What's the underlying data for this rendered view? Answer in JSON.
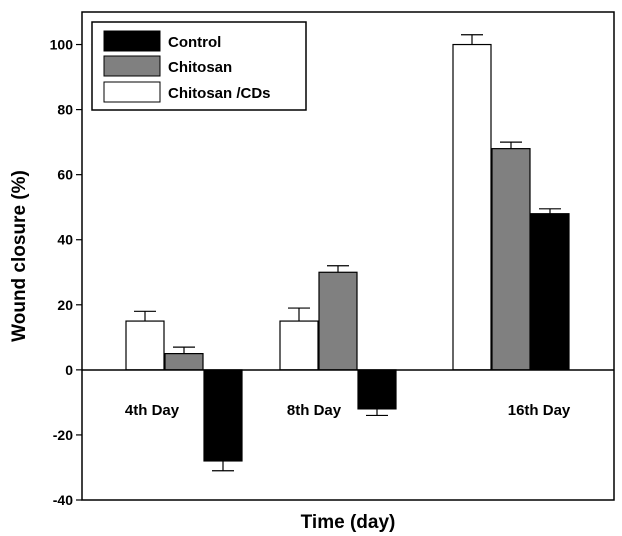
{
  "chart_data": {
    "type": "bar",
    "title": "",
    "xlabel": "Time (day)",
    "ylabel": "Wound closure (%)",
    "ylim": [
      -40,
      110
    ],
    "yticks": [
      -40,
      -20,
      0,
      20,
      40,
      60,
      80,
      100
    ],
    "categories": [
      "4th Day",
      "8th Day",
      "16th Day"
    ],
    "legend_position": "top-left",
    "grid": false,
    "series": [
      {
        "name": "Chitosan /CDs",
        "color": "#ffffff",
        "values": [
          15,
          15,
          100
        ],
        "errors": [
          3,
          4,
          3
        ]
      },
      {
        "name": "Chitosan",
        "color": "#808080",
        "values": [
          5,
          30,
          68
        ],
        "errors": [
          2,
          2,
          2
        ]
      },
      {
        "name": "Control",
        "color": "#000000",
        "values": [
          -28,
          -12,
          48
        ],
        "errors": [
          3,
          2,
          1.5
        ]
      }
    ],
    "legend_order": [
      "Control",
      "Chitosan",
      "Chitosan /CDs"
    ]
  }
}
